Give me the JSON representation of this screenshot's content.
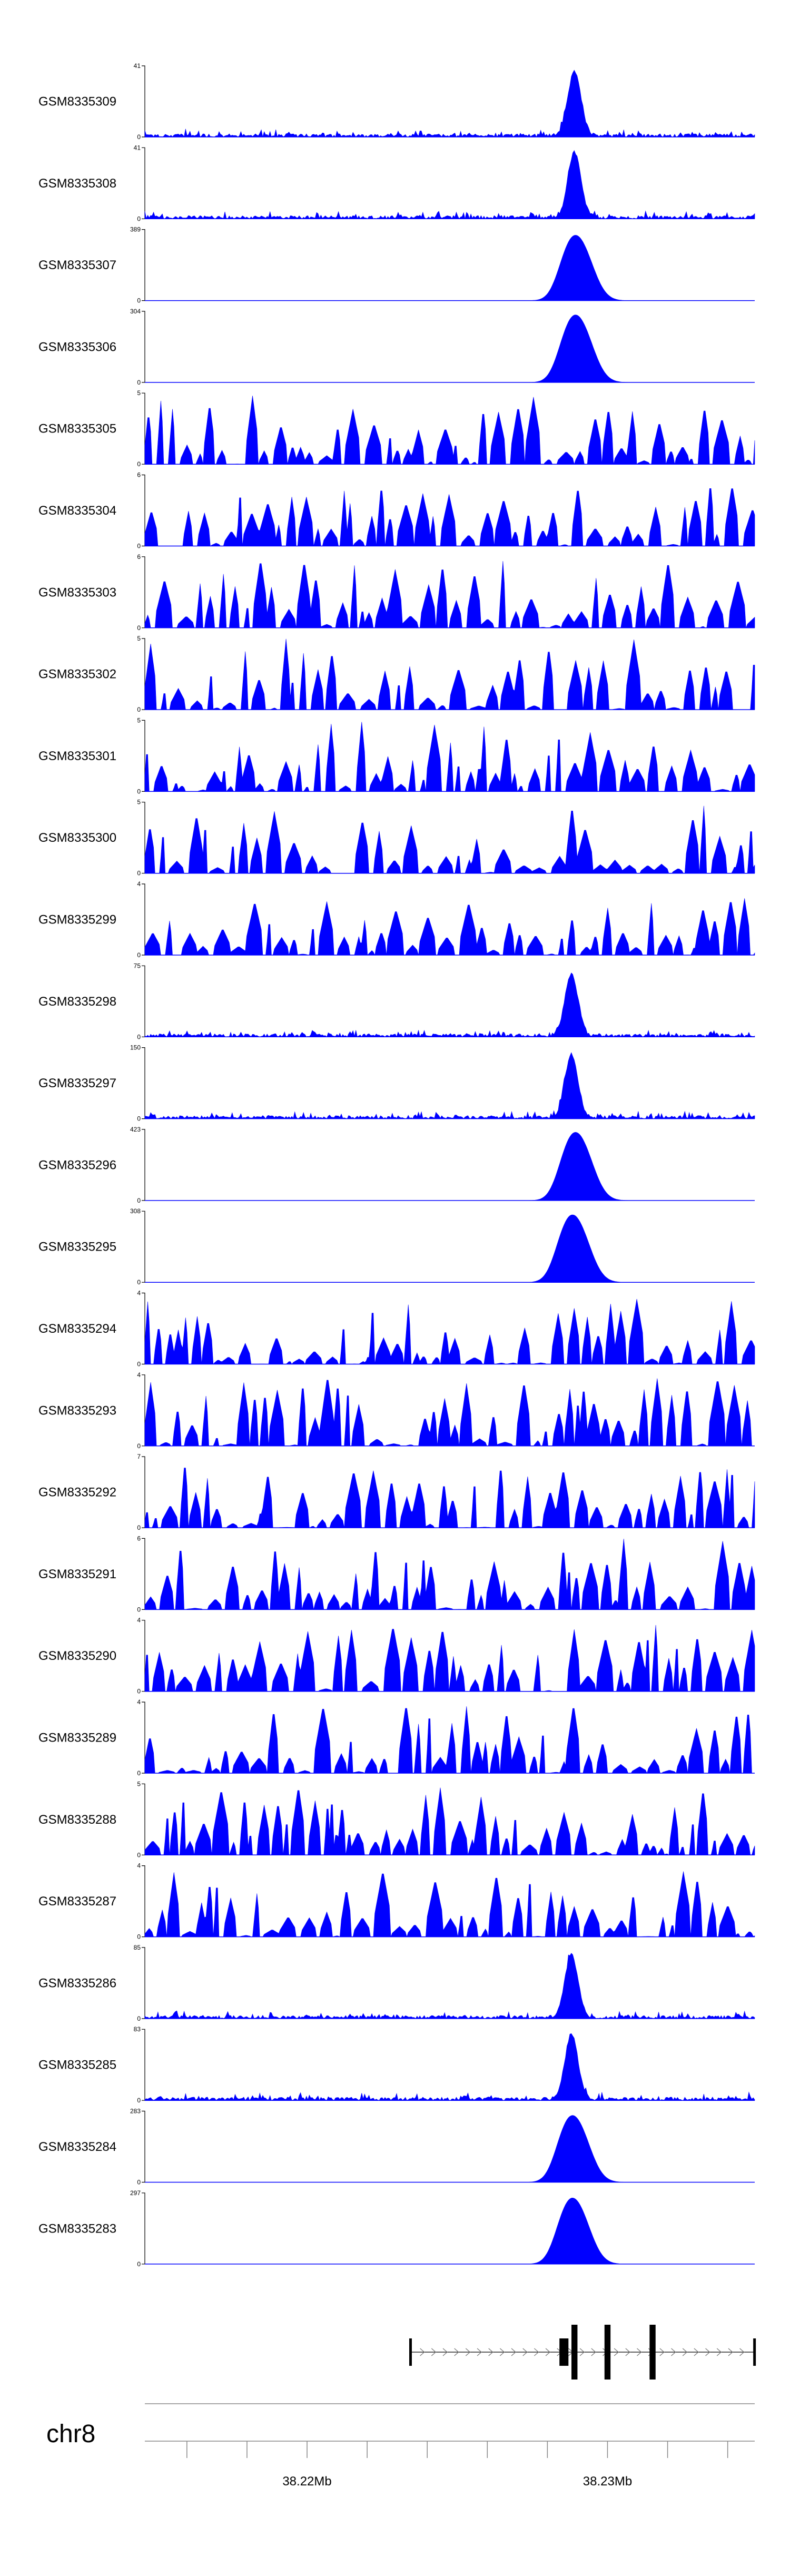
{
  "chart_data": {
    "type": "area",
    "color": "#0000ff",
    "chromosome": "chr8",
    "x_range_bp": [
      38214600,
      38234900
    ],
    "x_ticks": [
      {
        "bp": 38220000,
        "label": "38.22Mb"
      },
      {
        "bp": 38230000,
        "label": "38.23Mb"
      }
    ],
    "tracks": [
      {
        "label": "GSM8335309",
        "ymax": "41",
        "ymin": "0",
        "kind": "peak",
        "peak_frac": 0.94,
        "peak_bp": 38228900,
        "seed": 1
      },
      {
        "label": "GSM8335308",
        "ymax": "41",
        "ymin": "0",
        "kind": "peak",
        "peak_frac": 0.96,
        "peak_bp": 38228900,
        "seed": 2
      },
      {
        "label": "GSM8335307",
        "ymax": "389",
        "ymin": "0",
        "kind": "broad",
        "peak_frac": 0.92,
        "peak_bp": 38229100,
        "seed": 3
      },
      {
        "label": "GSM8335306",
        "ymax": "304",
        "ymin": "0",
        "kind": "broad",
        "peak_frac": 0.95,
        "peak_bp": 38229100,
        "seed": 4
      },
      {
        "label": "GSM8335305",
        "ymax": "5",
        "ymin": "0",
        "kind": "noise",
        "seed": 5
      },
      {
        "label": "GSM8335304",
        "ymax": "6",
        "ymin": "0",
        "kind": "noise",
        "seed": 6
      },
      {
        "label": "GSM8335303",
        "ymax": "6",
        "ymin": "0",
        "kind": "noise",
        "seed": 7
      },
      {
        "label": "GSM8335302",
        "ymax": "5",
        "ymin": "0",
        "kind": "noise",
        "seed": 8
      },
      {
        "label": "GSM8335301",
        "ymax": "5",
        "ymin": "0",
        "kind": "noise",
        "seed": 9
      },
      {
        "label": "GSM8335300",
        "ymax": "5",
        "ymin": "0",
        "kind": "noise",
        "seed": 10
      },
      {
        "label": "GSM8335299",
        "ymax": "4",
        "ymin": "0",
        "kind": "noise",
        "seed": 11
      },
      {
        "label": "GSM8335298",
        "ymax": "75",
        "ymin": "0",
        "kind": "peak",
        "peak_frac": 0.9,
        "peak_bp": 38228800,
        "seed": 12
      },
      {
        "label": "GSM8335297",
        "ymax": "150",
        "ymin": "0",
        "kind": "peak",
        "peak_frac": 0.93,
        "peak_bp": 38228800,
        "seed": 13
      },
      {
        "label": "GSM8335296",
        "ymax": "423",
        "ymin": "0",
        "kind": "broad",
        "peak_frac": 0.96,
        "peak_bp": 38229100,
        "seed": 14
      },
      {
        "label": "GSM8335295",
        "ymax": "308",
        "ymin": "0",
        "kind": "broad",
        "peak_frac": 0.95,
        "peak_bp": 38229000,
        "seed": 15
      },
      {
        "label": "GSM8335294",
        "ymax": "4",
        "ymin": "0",
        "kind": "noise",
        "seed": 16
      },
      {
        "label": "GSM8335293",
        "ymax": "4",
        "ymin": "0",
        "kind": "noise",
        "seed": 17
      },
      {
        "label": "GSM8335292",
        "ymax": "7",
        "ymin": "0",
        "kind": "noise",
        "seed": 18
      },
      {
        "label": "GSM8335291",
        "ymax": "6",
        "ymin": "0",
        "kind": "noise",
        "seed": 19
      },
      {
        "label": "GSM8335290",
        "ymax": "4",
        "ymin": "0",
        "kind": "noise",
        "seed": 20
      },
      {
        "label": "GSM8335289",
        "ymax": "4",
        "ymin": "0",
        "kind": "noise",
        "seed": 21
      },
      {
        "label": "GSM8335288",
        "ymax": "5",
        "ymin": "0",
        "kind": "noise",
        "seed": 22
      },
      {
        "label": "GSM8335287",
        "ymax": "4",
        "ymin": "0",
        "kind": "noise",
        "seed": 23
      },
      {
        "label": "GSM8335286",
        "ymax": "85",
        "ymin": "0",
        "kind": "peak",
        "peak_frac": 0.92,
        "peak_bp": 38228800,
        "seed": 24
      },
      {
        "label": "GSM8335285",
        "ymax": "83",
        "ymin": "0",
        "kind": "peak",
        "peak_frac": 0.94,
        "peak_bp": 38228800,
        "seed": 25
      },
      {
        "label": "GSM8335284",
        "ymax": "283",
        "ymin": "0",
        "kind": "broad",
        "peak_frac": 0.94,
        "peak_bp": 38229000,
        "seed": 26
      },
      {
        "label": "GSM8335283",
        "ymax": "297",
        "ymin": "0",
        "kind": "broad",
        "peak_frac": 0.93,
        "peak_bp": 38229000,
        "seed": 27
      }
    ],
    "gene_model": {
      "strand": "+",
      "start_bp": 38223400,
      "end_bp": 38234900,
      "exons": [
        {
          "start_bp": 38228400,
          "end_bp": 38228700,
          "kind": "coding"
        },
        {
          "start_bp": 38228800,
          "end_bp": 38229000,
          "kind": "coding"
        },
        {
          "start_bp": 38229900,
          "end_bp": 38230100,
          "kind": "coding"
        },
        {
          "start_bp": 38231400,
          "end_bp": 38231600,
          "kind": "coding"
        },
        {
          "start_bp": 38223400,
          "end_bp": 38223450,
          "kind": "utr"
        },
        {
          "start_bp": 38234850,
          "end_bp": 38234900,
          "kind": "utr"
        }
      ]
    }
  }
}
